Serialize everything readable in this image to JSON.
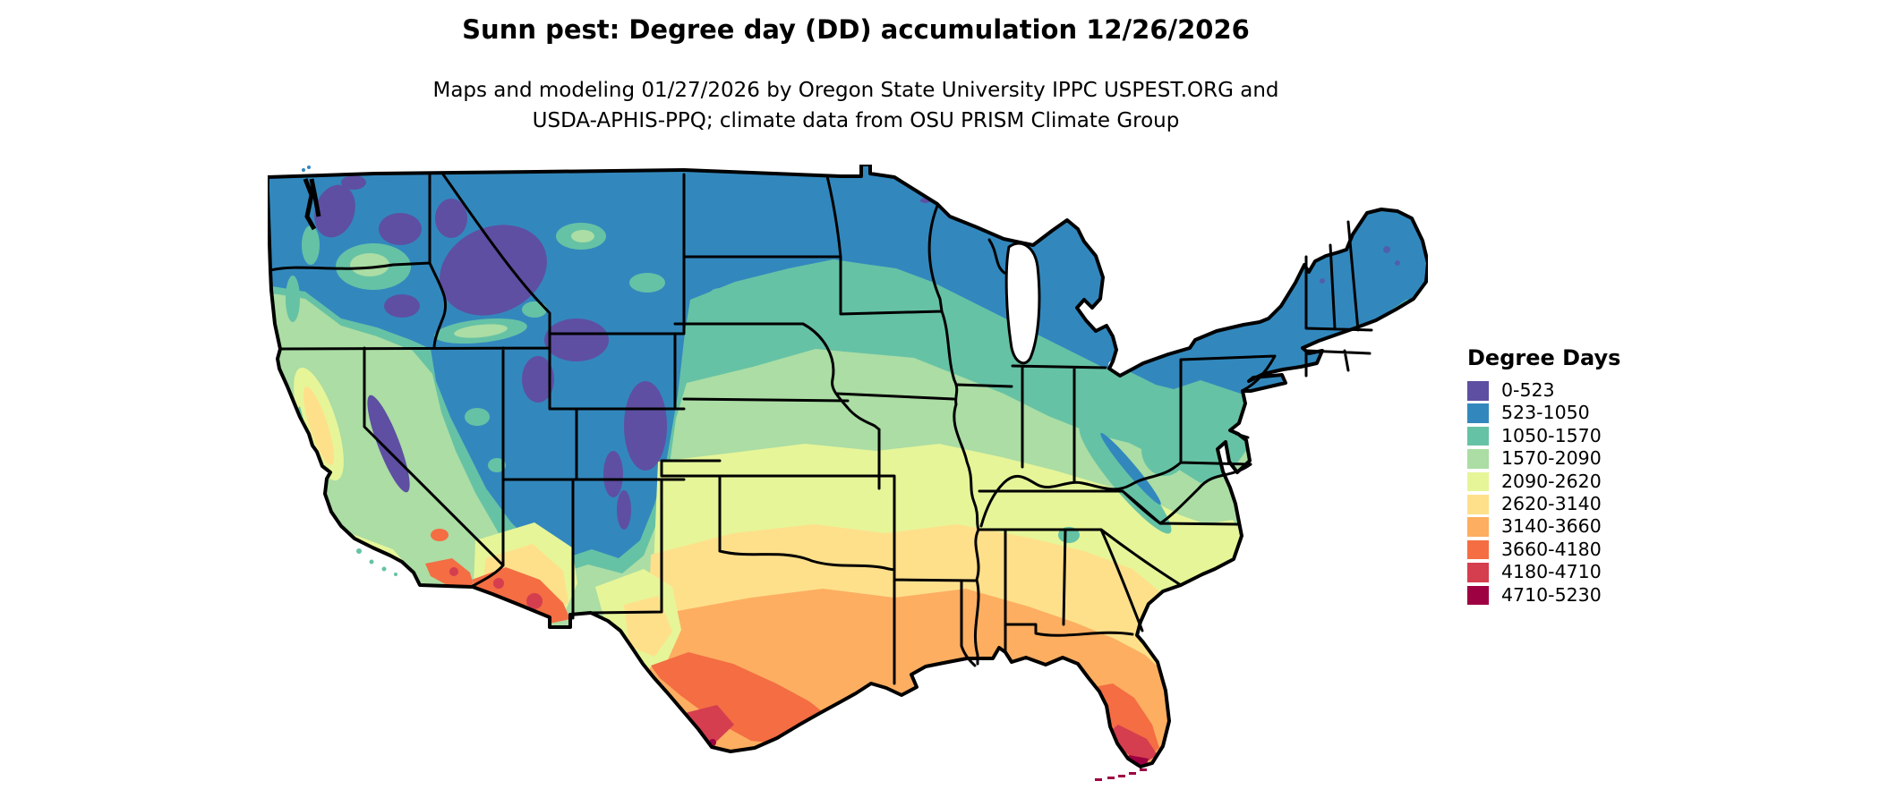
{
  "header": {
    "title": "Sunn pest: Degree day (DD) accumulation 12/26/2026",
    "subtitle_line1": "Maps and modeling 01/27/2026 by Oregon State University IPPC USPEST.ORG and",
    "subtitle_line2": "USDA-APHIS-PPQ; climate data from OSU PRISM Climate Group"
  },
  "legend": {
    "title": "Degree Days",
    "entries": [
      {
        "label": "0-523",
        "color": "#5e4fa2"
      },
      {
        "label": "523-1050",
        "color": "#3288bd"
      },
      {
        "label": "1050-1570",
        "color": "#66c2a5"
      },
      {
        "label": "1570-2090",
        "color": "#abdda4"
      },
      {
        "label": "2090-2620",
        "color": "#e6f598"
      },
      {
        "label": "2620-3140",
        "color": "#fee08b"
      },
      {
        "label": "3140-3660",
        "color": "#fdae61"
      },
      {
        "label": "3660-4180",
        "color": "#f46d43"
      },
      {
        "label": "4180-4710",
        "color": "#d53e4f"
      },
      {
        "label": "4710-5230",
        "color": "#9e0142"
      }
    ]
  },
  "chart_data": {
    "type": "heatmap",
    "title": "Sunn pest: Degree day (DD) accumulation 12/26/2026",
    "legend_title": "Degree Days",
    "legend_position": "right",
    "bins": [
      "0-523",
      "523-1050",
      "1050-1570",
      "1570-2090",
      "2090-2620",
      "2620-3140",
      "3140-3660",
      "3660-4180",
      "4180-4710",
      "4710-5230"
    ],
    "bin_colors": [
      "#5e4fa2",
      "#3288bd",
      "#66c2a5",
      "#abdda4",
      "#e6f598",
      "#fee08b",
      "#fdae61",
      "#f46d43",
      "#d53e4f",
      "#9e0142"
    ],
    "geography": "contiguous United States with state boundaries",
    "pattern_low_values": "northern tier, Rocky Mountains, Cascades and Sierra Nevada (purple/blue)",
    "pattern_mid_values": "central plains, Midwest and mid-Atlantic (teal/green/yellow-green)",
    "pattern_high_values": "southern Arizona, Texas, Gulf Coast and Florida (orange/red, darkest at south Texas tip and Florida Keys)"
  }
}
